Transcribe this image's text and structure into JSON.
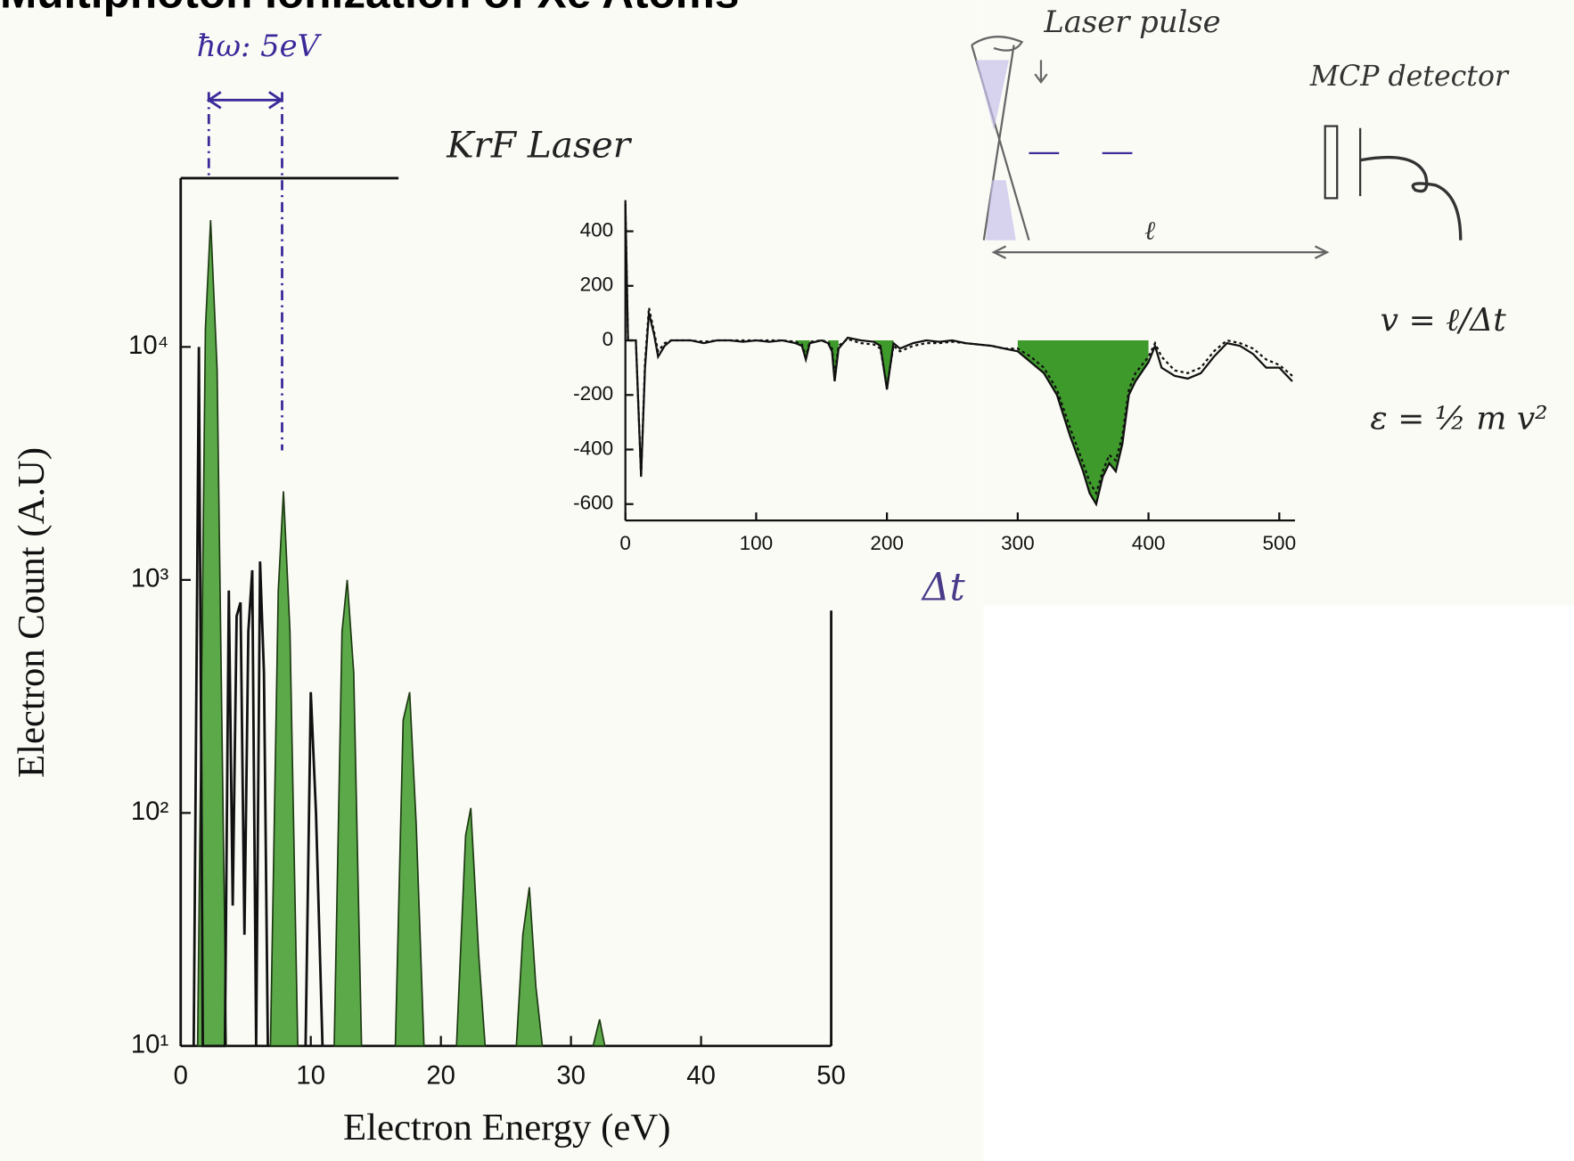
{
  "title": "Multiphoton Ionization of Xe Atoms",
  "annotations": {
    "photon_energy": "ħω: 5eV",
    "laser": "KrF Laser",
    "laser_pulse": "Laser pulse",
    "detector": "MCP detector",
    "distance": "ℓ",
    "velocity": "v = ℓ/Δt",
    "energy": "ε = ½ m v²"
  },
  "chart_data": [
    {
      "type": "area",
      "xlabel": "Electron Energy (eV)",
      "ylabel": "Electron Count (A.U)",
      "log_y": true,
      "xlim": [
        0,
        50
      ],
      "ylim": [
        10,
        53000
      ],
      "xticks": [
        0,
        10,
        20,
        30,
        40,
        50
      ],
      "yticks": [
        {
          "value": 10,
          "label": "10¹"
        },
        {
          "value": 100,
          "label": "10²"
        },
        {
          "value": 1000,
          "label": "10³"
        },
        {
          "value": 10000,
          "label": "10⁴"
        }
      ],
      "series": [
        {
          "color": "#3f9a2c",
          "x": [
            1.3,
            1.9,
            2.3,
            2.8,
            3.5,
            5.0,
            6.9,
            7.5,
            7.9,
            8.4,
            9.0,
            10.5,
            11.8,
            12.4,
            12.8,
            13.3,
            13.9,
            15.0,
            16.5,
            17.1,
            17.6,
            18.1,
            18.7,
            20.0,
            21.2,
            21.9,
            22.3,
            22.9,
            23.4,
            24.5,
            25.8,
            26.3,
            26.8,
            27.3,
            27.8,
            30.0,
            31.7,
            32.2,
            32.6
          ],
          "values": [
            10,
            12000,
            35000,
            8000,
            10,
            null,
            10,
            900,
            2400,
            600,
            10,
            null,
            10,
            600,
            1000,
            400,
            10,
            null,
            10,
            250,
            330,
            90,
            10,
            null,
            10,
            80,
            105,
            25,
            10,
            null,
            10,
            30,
            48,
            18,
            10,
            null,
            10,
            13,
            10
          ]
        },
        {
          "color": "#111111",
          "x": [
            1.0,
            1.4,
            1.7,
            3.4,
            3.7,
            4.0,
            4.3,
            4.6,
            4.9,
            5.2,
            5.5,
            5.8,
            6.1,
            6.4,
            6.7,
            8.5,
            9.6,
            10.0,
            10.4,
            10.9
          ],
          "values": [
            10,
            10000,
            10,
            10,
            900,
            40,
            700,
            800,
            30,
            600,
            1100,
            10,
            1200,
            400,
            10,
            null,
            10,
            330,
            100,
            10
          ]
        }
      ]
    },
    {
      "type": "line",
      "xlabel": "Δt",
      "xlim": [
        0,
        512
      ],
      "ylim": [
        -660,
        514
      ],
      "xticks": [
        0,
        100,
        200,
        300,
        400,
        500
      ],
      "yticks": [
        -600,
        -400,
        -200,
        0,
        200,
        400
      ],
      "x": [
        0,
        2,
        8,
        12,
        15,
        18,
        22,
        25,
        30,
        35,
        40,
        50,
        60,
        70,
        80,
        90,
        100,
        110,
        120,
        130,
        135,
        138,
        141,
        150,
        155,
        158,
        160,
        163,
        170,
        180,
        190,
        195,
        200,
        205,
        210,
        220,
        230,
        240,
        250,
        260,
        270,
        280,
        290,
        300,
        310,
        320,
        330,
        340,
        350,
        355,
        360,
        365,
        370,
        375,
        380,
        385,
        390,
        400,
        405,
        410,
        420,
        430,
        440,
        450,
        460,
        470,
        480,
        490,
        500,
        510
      ],
      "series": [
        {
          "color": "#3f9a2c",
          "fill": true,
          "values": [
            null,
            null,
            null,
            null,
            null,
            null,
            null,
            null,
            null,
            null,
            null,
            null,
            null,
            null,
            null,
            null,
            null,
            null,
            null,
            -10,
            -20,
            -70,
            -10,
            null,
            -10,
            -40,
            -150,
            -30,
            null,
            null,
            -5,
            -20,
            -180,
            -10,
            null,
            null,
            null,
            null,
            null,
            null,
            null,
            null,
            null,
            -40,
            -80,
            -120,
            -200,
            -350,
            -480,
            -560,
            -600,
            -500,
            -450,
            -480,
            -380,
            -200,
            -150,
            -80,
            null,
            null,
            null,
            null,
            null,
            null,
            null,
            null,
            null,
            null,
            null,
            null
          ]
        },
        {
          "color": "#111111",
          "dashed": true,
          "values": [
            500,
            0,
            0,
            -500,
            -80,
            120,
            30,
            -40,
            -10,
            0,
            0,
            0,
            -5,
            0,
            0,
            0,
            0,
            0,
            0,
            -5,
            -15,
            -60,
            -5,
            0,
            -5,
            -30,
            -130,
            -20,
            5,
            -10,
            -15,
            -30,
            -170,
            -20,
            -40,
            -20,
            -10,
            -10,
            -5,
            -10,
            -15,
            -20,
            -30,
            -30,
            -60,
            -100,
            -180,
            -320,
            -450,
            -520,
            -560,
            -480,
            -420,
            -440,
            -350,
            -180,
            -120,
            -60,
            -10,
            -60,
            -110,
            -120,
            -100,
            -40,
            0,
            -10,
            -30,
            -70,
            -90,
            -130
          ]
        },
        {
          "color": "#111111",
          "values": [
            500,
            0,
            0,
            -500,
            -100,
            100,
            20,
            -60,
            -20,
            0,
            0,
            0,
            -10,
            0,
            0,
            -5,
            0,
            -5,
            0,
            -10,
            -20,
            -70,
            -10,
            0,
            -10,
            -40,
            -150,
            -30,
            10,
            0,
            -5,
            -20,
            -180,
            -10,
            -30,
            -10,
            0,
            -5,
            0,
            -10,
            -15,
            -20,
            -30,
            -40,
            -80,
            -120,
            -200,
            -350,
            -480,
            -560,
            -600,
            -500,
            -450,
            -480,
            -380,
            -200,
            -150,
            -80,
            -20,
            -100,
            -130,
            -140,
            -120,
            -60,
            -10,
            -20,
            -50,
            -100,
            -100,
            -150
          ]
        }
      ]
    }
  ]
}
